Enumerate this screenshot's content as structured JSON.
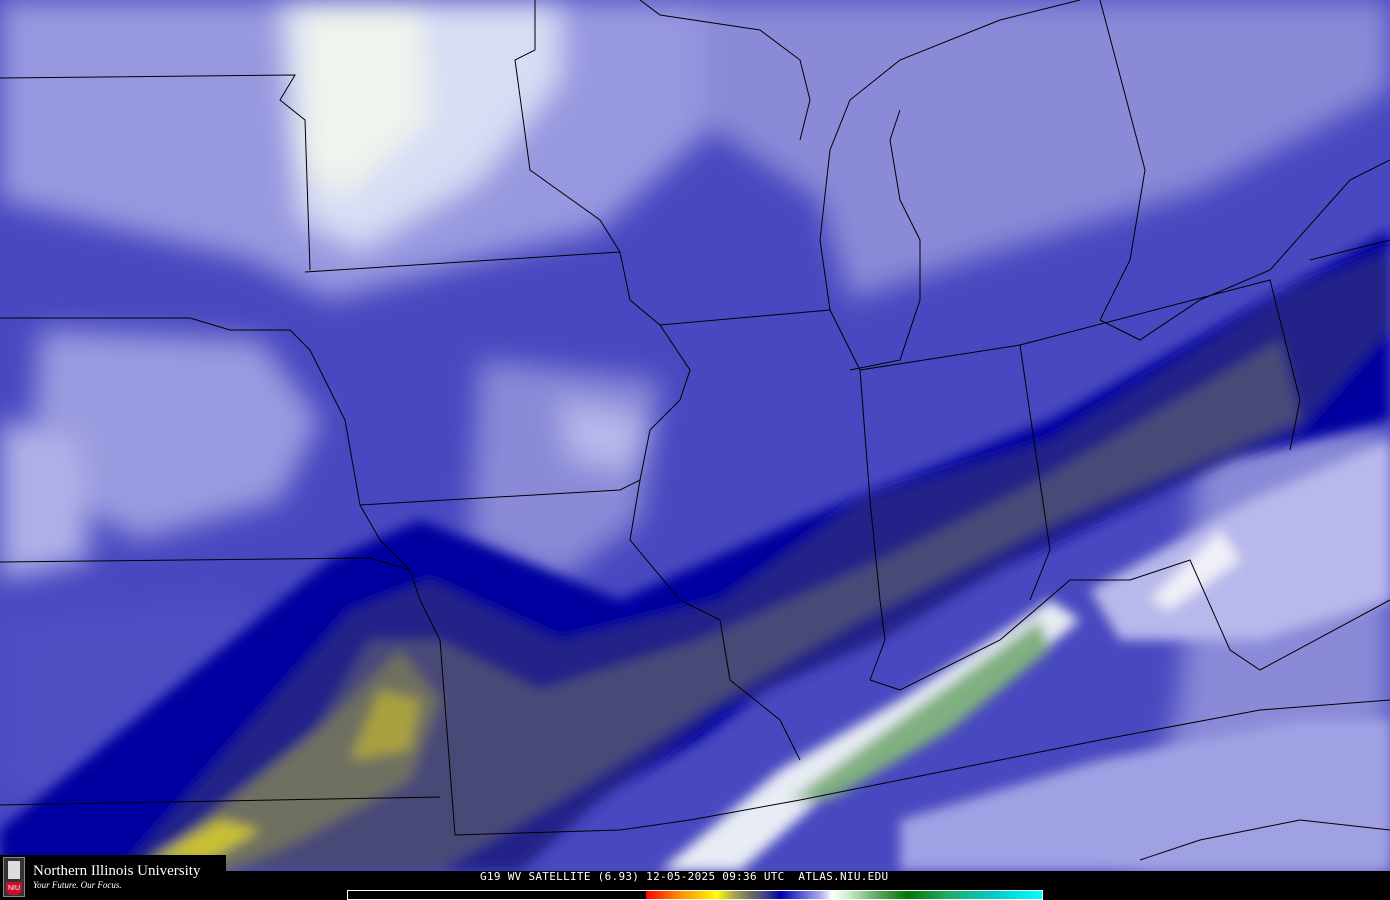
{
  "product": {
    "caption": "G19 WV SATELLITE (6.93) 12-05-2025 09:36 UTC  ATLAS.NIU.EDU",
    "satellite": "G19",
    "channel": "WV",
    "wavelength_um": "6.93",
    "date": "12-05-2025",
    "time": "09:36 UTC",
    "source": "ATLAS.NIU.EDU"
  },
  "logo": {
    "name": "Northern Illinois University",
    "tagline": "Your Future. Our Focus.",
    "badge": "NIU",
    "color": "#c8102e"
  },
  "colors": {
    "moist_white": "#f0f4f0",
    "light": "#c8c8f0",
    "mid_light": "#8888d8",
    "mid": "#4848c0",
    "deep_blue": "#0000a0",
    "dry_navy": "#202088",
    "dry_grey": "#484878",
    "very_dry_yellow": "#b0a830",
    "cold_green": "#70a870"
  }
}
